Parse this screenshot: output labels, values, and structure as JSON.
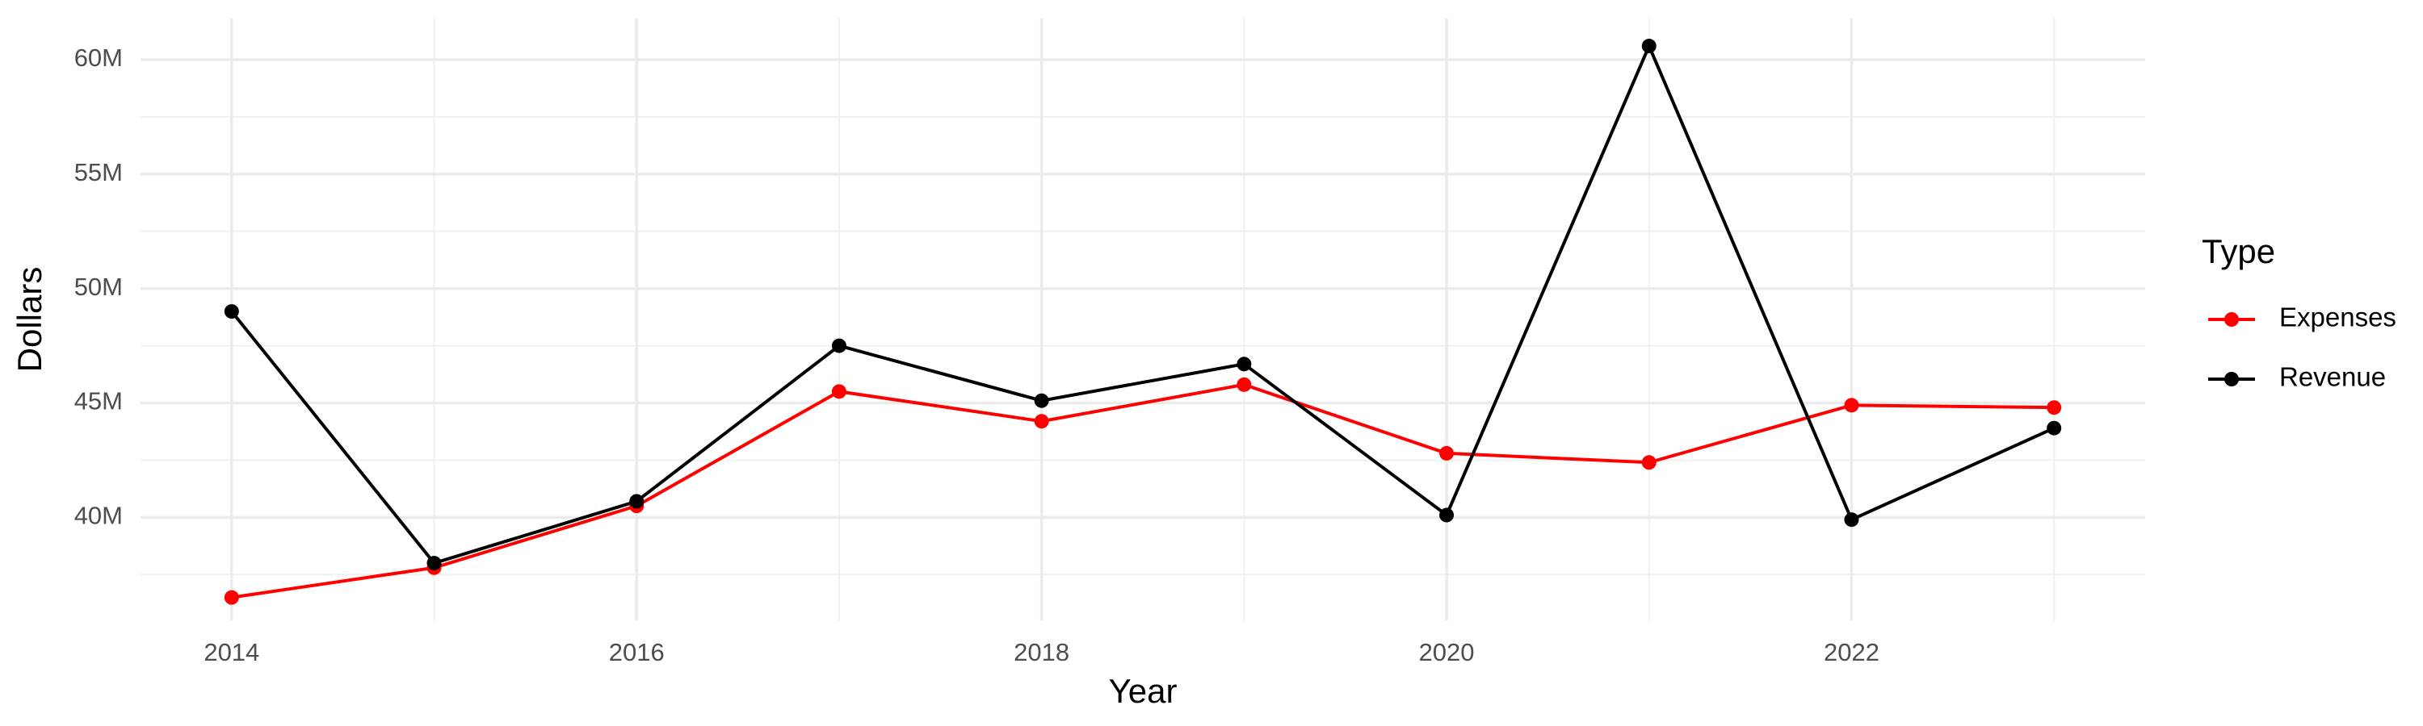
{
  "chart_data": {
    "type": "line",
    "x_label": "Year",
    "y_label": "Dollars",
    "legend_title": "Type",
    "legend_position": "right",
    "grid": true,
    "x": [
      2014,
      2015,
      2016,
      2017,
      2018,
      2019,
      2020,
      2021,
      2022,
      2023
    ],
    "series": [
      {
        "name": "Expenses",
        "color": "#ff0000",
        "values": [
          36500000,
          37800000,
          40500000,
          45500000,
          44200000,
          45800000,
          42800000,
          42400000,
          44900000,
          44800000
        ]
      },
      {
        "name": "Revenue",
        "color": "#000000",
        "values": [
          49000000,
          38000000,
          40700000,
          47500000,
          45100000,
          46700000,
          40100000,
          60600000,
          39900000,
          43900000
        ]
      }
    ],
    "xlim": [
      2013.55,
      2023.45
    ],
    "xticks": [
      2014,
      2016,
      2018,
      2020,
      2022
    ],
    "ylim": [
      35500000,
      61800000
    ],
    "yticks": [
      {
        "value": 40000000,
        "label": "40M"
      },
      {
        "value": 45000000,
        "label": "45M"
      },
      {
        "value": 50000000,
        "label": "50M"
      },
      {
        "value": 55000000,
        "label": "55M"
      },
      {
        "value": 60000000,
        "label": "60M"
      }
    ]
  }
}
